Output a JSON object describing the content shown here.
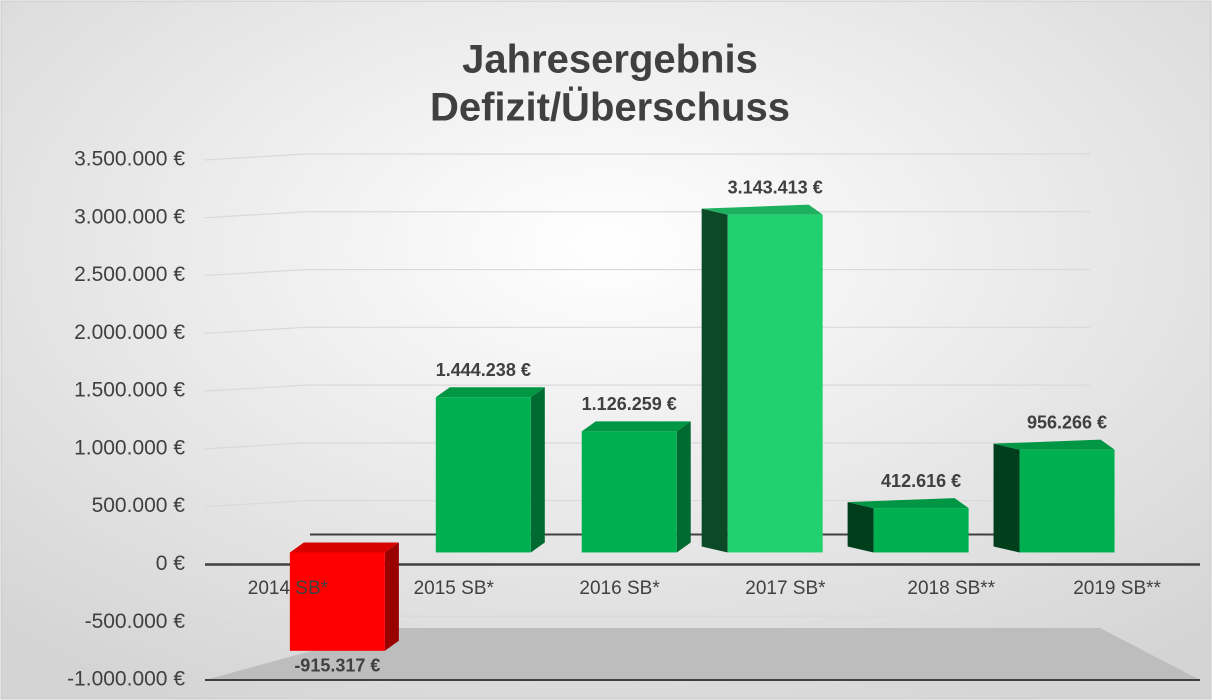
{
  "chart_data": {
    "type": "bar3d",
    "title": [
      "Jahresergebnis",
      "Defizit/Überschuss"
    ],
    "categories": [
      "2014 SB*",
      "2015 SB*",
      "2016 SB*",
      "2017 SB*",
      "2018 SB**",
      "2019 SB**"
    ],
    "values": [
      -915317,
      1444238,
      1126259,
      3143413,
      412616,
      956266
    ],
    "value_labels": [
      "-915.317 €",
      "1.444.238 €",
      "1.126.259 €",
      "3.143.413 €",
      "412.616 €",
      "956.266 €"
    ],
    "colors": [
      "#ff0000",
      "#00b050",
      "#00b050",
      "#22d070",
      "#00b050",
      "#00b050"
    ],
    "ylim": [
      -1000000,
      3500000
    ],
    "yticks": [
      {
        "value": -1000000,
        "label": "-1.000.000 €"
      },
      {
        "value": -500000,
        "label": "-500.000 €"
      },
      {
        "value": 0,
        "label": "0 €"
      },
      {
        "value": 500000,
        "label": "500.000 €"
      },
      {
        "value": 1000000,
        "label": "1.000.000 €"
      },
      {
        "value": 1500000,
        "label": "1.500.000 €"
      },
      {
        "value": 2000000,
        "label": "2.000.000 €"
      },
      {
        "value": 2500000,
        "label": "2.500.000 €"
      },
      {
        "value": 3000000,
        "label": "3.000.000 €"
      },
      {
        "value": 3500000,
        "label": "3.500.000 €"
      }
    ],
    "grid": true
  }
}
